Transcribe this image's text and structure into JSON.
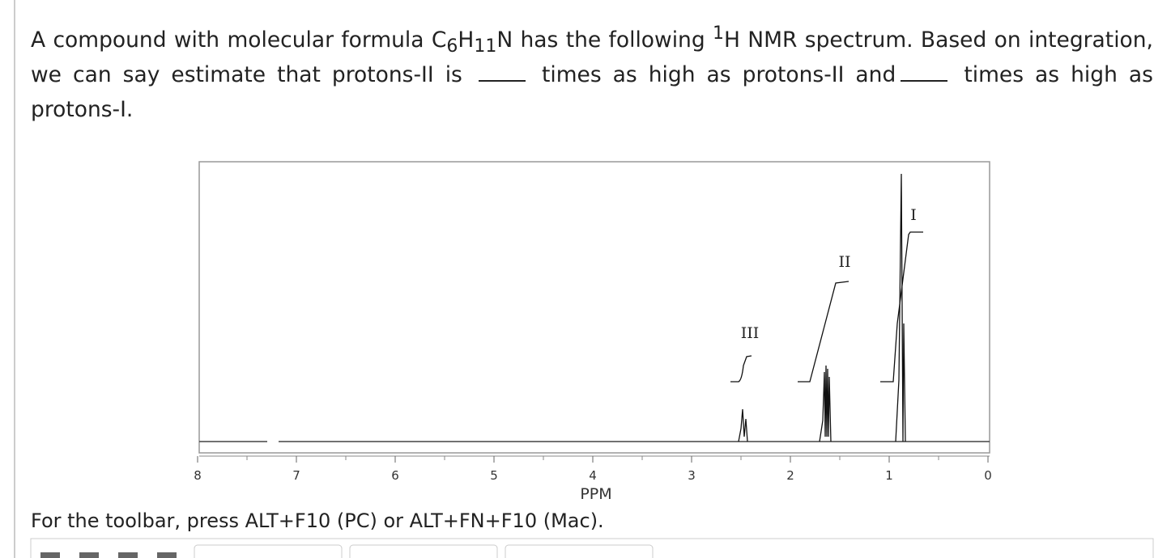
{
  "question": {
    "parts": [
      "A compound with molecular formula C",
      "6",
      "H",
      "11",
      "N has the following ",
      "1",
      "H NMR spectrum. Based on integration, we can say estimate that protons-II is ",
      "times as high as protons-II and",
      "times as high as protons-I."
    ]
  },
  "spectrum": {
    "labels": [
      "III",
      "II",
      "I"
    ],
    "x_ticks": [
      8,
      7,
      6,
      5,
      4,
      3,
      2,
      1,
      0
    ],
    "x_axis_label": "PPM"
  },
  "toolbar_hint": "For the toolbar, press ALT+F10 (PC) or ALT+FN+F10 (Mac)."
}
